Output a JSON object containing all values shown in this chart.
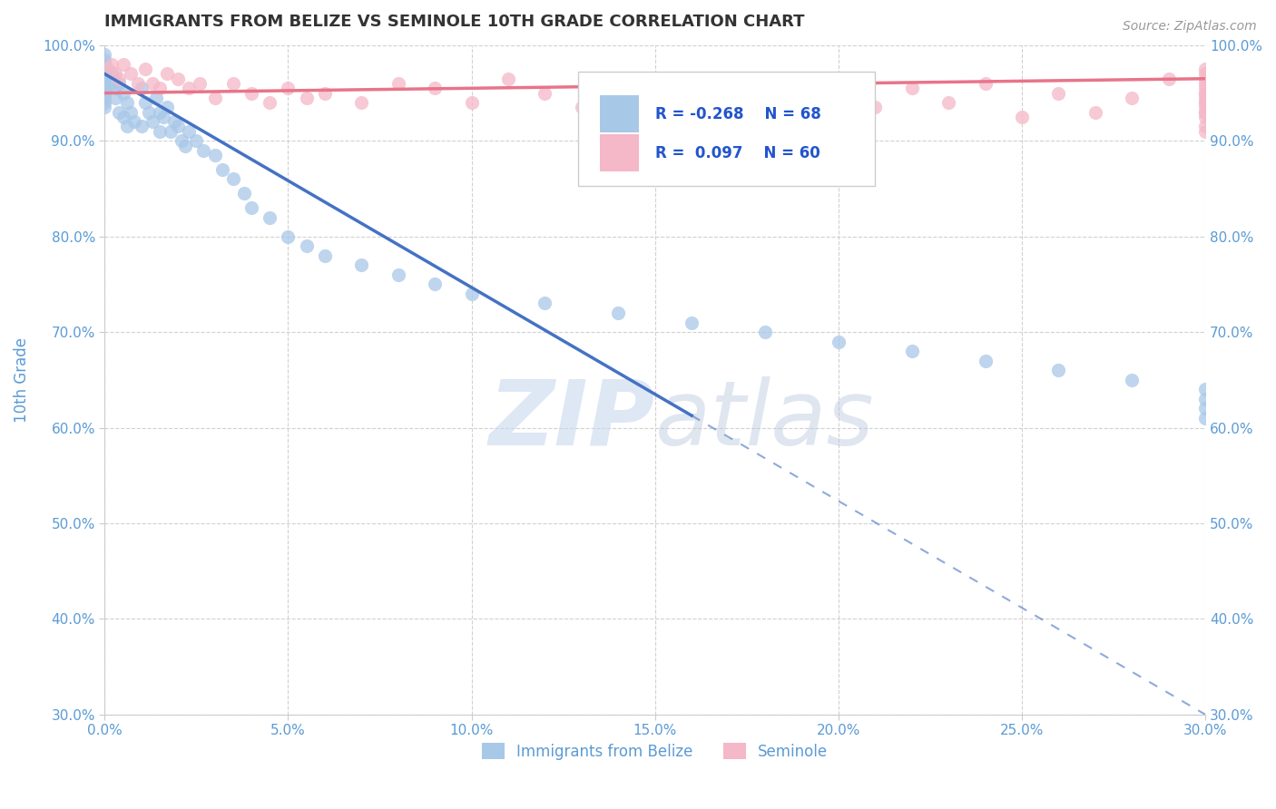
{
  "title": "IMMIGRANTS FROM BELIZE VS SEMINOLE 10TH GRADE CORRELATION CHART",
  "source_text": "Source: ZipAtlas.com",
  "ylabel": "10th Grade",
  "legend_r_blue": "R = -0.268",
  "legend_n_blue": "N = 68",
  "legend_r_pink": "R =  0.097",
  "legend_n_pink": "N = 60",
  "legend_label_blue": "Immigrants from Belize",
  "legend_label_pink": "Seminole",
  "blue_color": "#a8c8e8",
  "pink_color": "#f4b8c8",
  "trend_blue_color": "#4472c4",
  "trend_pink_color": "#e8748a",
  "watermark_zip": "ZIP",
  "watermark_atlas": "atlas",
  "blue_scatter_x": [
    0.0,
    0.0,
    0.0,
    0.0,
    0.0,
    0.0,
    0.0,
    0.0,
    0.0,
    0.0,
    0.0,
    0.0,
    0.2,
    0.2,
    0.3,
    0.3,
    0.4,
    0.4,
    0.5,
    0.5,
    0.6,
    0.6,
    0.7,
    0.8,
    1.0,
    1.0,
    1.1,
    1.2,
    1.3,
    1.4,
    1.5,
    1.5,
    1.6,
    1.7,
    1.8,
    1.9,
    2.0,
    2.1,
    2.2,
    2.3,
    2.5,
    2.7,
    3.0,
    3.2,
    3.5,
    3.8,
    4.0,
    4.5,
    5.0,
    5.5,
    6.0,
    7.0,
    8.0,
    9.0,
    10.0,
    12.0,
    14.0,
    16.0,
    18.0,
    20.0,
    22.0,
    24.0,
    26.0,
    28.0,
    30.0,
    30.0,
    30.0,
    30.0
  ],
  "blue_scatter_y": [
    99.0,
    98.5,
    98.0,
    97.5,
    97.0,
    96.5,
    96.0,
    95.5,
    95.0,
    94.5,
    94.0,
    93.5,
    97.0,
    96.0,
    95.5,
    94.5,
    96.0,
    93.0,
    95.0,
    92.5,
    94.0,
    91.5,
    93.0,
    92.0,
    95.5,
    91.5,
    94.0,
    93.0,
    92.0,
    94.5,
    93.0,
    91.0,
    92.5,
    93.5,
    91.0,
    92.0,
    91.5,
    90.0,
    89.5,
    91.0,
    90.0,
    89.0,
    88.5,
    87.0,
    86.0,
    84.5,
    83.0,
    82.0,
    80.0,
    79.0,
    78.0,
    77.0,
    76.0,
    75.0,
    74.0,
    73.0,
    72.0,
    71.0,
    70.0,
    69.0,
    68.0,
    67.0,
    66.0,
    65.0,
    64.0,
    63.0,
    62.0,
    61.0
  ],
  "pink_scatter_x": [
    0.1,
    0.2,
    0.3,
    0.4,
    0.5,
    0.7,
    0.9,
    1.1,
    1.3,
    1.5,
    1.7,
    2.0,
    2.3,
    2.6,
    3.0,
    3.5,
    4.0,
    4.5,
    5.0,
    5.5,
    6.0,
    7.0,
    8.0,
    9.0,
    10.0,
    11.0,
    12.0,
    13.0,
    14.0,
    15.0,
    16.0,
    17.0,
    18.0,
    19.0,
    20.0,
    21.0,
    22.0,
    23.0,
    24.0,
    25.0,
    26.0,
    27.0,
    28.0,
    29.0,
    30.0,
    30.0,
    30.0,
    30.0,
    30.0,
    30.0,
    30.0,
    30.0,
    30.0,
    30.0,
    30.0,
    30.0,
    30.0,
    30.0,
    30.0,
    30.0
  ],
  "pink_scatter_y": [
    97.5,
    98.0,
    97.0,
    96.5,
    98.0,
    97.0,
    96.0,
    97.5,
    96.0,
    95.5,
    97.0,
    96.5,
    95.5,
    96.0,
    94.5,
    96.0,
    95.0,
    94.0,
    95.5,
    94.5,
    95.0,
    94.0,
    96.0,
    95.5,
    94.0,
    96.5,
    95.0,
    93.5,
    94.5,
    95.5,
    94.0,
    96.0,
    93.0,
    95.0,
    94.5,
    93.5,
    95.5,
    94.0,
    96.0,
    92.5,
    95.0,
    93.0,
    94.5,
    96.5,
    95.0,
    94.0,
    93.0,
    97.0,
    92.5,
    96.0,
    94.5,
    93.0,
    95.5,
    91.5,
    94.0,
    97.5,
    95.0,
    93.5,
    96.5,
    91.0
  ],
  "xlim": [
    0.0,
    30.0
  ],
  "ylim": [
    30.0,
    100.0
  ],
  "xtick_vals": [
    0.0,
    5.0,
    10.0,
    15.0,
    20.0,
    25.0,
    30.0
  ],
  "ytick_vals": [
    30.0,
    40.0,
    50.0,
    60.0,
    70.0,
    80.0,
    90.0,
    100.0
  ],
  "grid_color": "#cccccc",
  "background_color": "#ffffff",
  "title_color": "#333333",
  "axis_label_color": "#5b9bd5",
  "tick_label_color": "#5b9bd5",
  "blue_trend_x0": 0.0,
  "blue_trend_x1": 30.0,
  "blue_trend_y0": 97.0,
  "blue_trend_y1": 30.0,
  "blue_solid_x1": 16.0,
  "pink_trend_x0": 0.0,
  "pink_trend_x1": 30.0,
  "pink_trend_y0": 95.0,
  "pink_trend_y1": 96.5
}
